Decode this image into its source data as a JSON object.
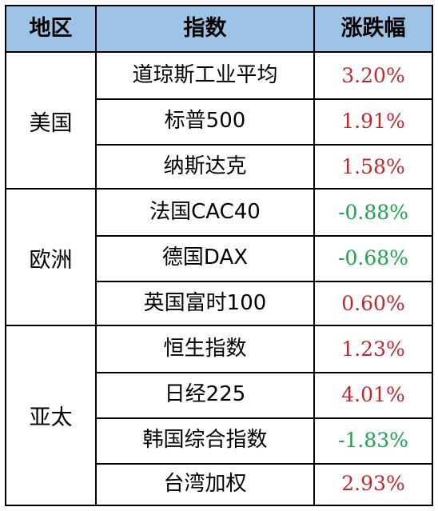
{
  "header": {
    "region": "地区",
    "index": "指数",
    "change": "涨跌幅"
  },
  "groups": [
    {
      "region": "美国",
      "rows": [
        {
          "name": "道琼斯工业平均",
          "change": "3.20%",
          "dir": "up"
        },
        {
          "name": "标普500",
          "change": "1.91%",
          "dir": "up"
        },
        {
          "name": "纳斯达克",
          "change": "1.58%",
          "dir": "up"
        }
      ]
    },
    {
      "region": "欧洲",
      "rows": [
        {
          "name": "法国CAC40",
          "change": "-0.88%",
          "dir": "down"
        },
        {
          "name": "德国DAX",
          "change": "-0.68%",
          "dir": "down"
        },
        {
          "name": "英国富时100",
          "change": "0.60%",
          "dir": "up"
        }
      ]
    },
    {
      "region": "亚太",
      "rows": [
        {
          "name": "恒生指数",
          "change": "1.23%",
          "dir": "up"
        },
        {
          "name": "日经225",
          "change": "4.01%",
          "dir": "up"
        },
        {
          "name": "韩国综合指数",
          "change": "-1.83%",
          "dir": "down"
        },
        {
          "name": "台湾加权",
          "change": "2.93%",
          "dir": "up"
        }
      ]
    }
  ],
  "colors": {
    "header_bg": "#9dc3e6",
    "up": "#c0272d",
    "down": "#1aa64a"
  }
}
